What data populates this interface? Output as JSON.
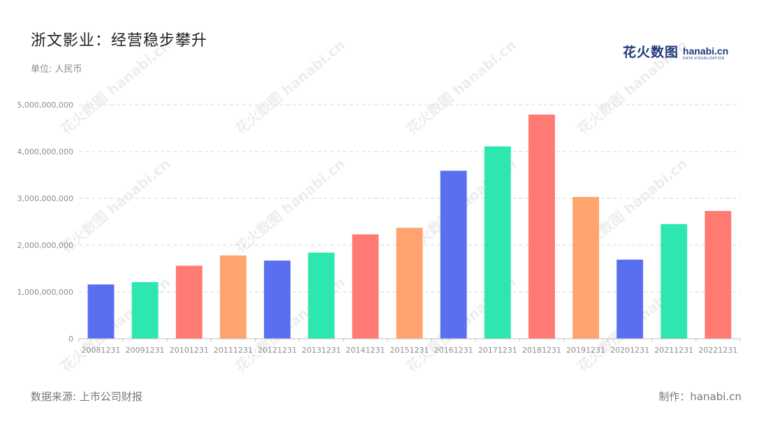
{
  "header": {
    "title": "浙文影业：经营稳步攀升",
    "unit": "单位: 人民币"
  },
  "logo": {
    "cn": "花火数图",
    "en": "hanabi.cn",
    "sub": "DATA VISUALIZATION"
  },
  "watermark_text": "花火数图 hanabi.cn",
  "footer": {
    "source": "数据来源: 上市公司财报",
    "credit": "制作：hanabi.cn"
  },
  "colors": {
    "blue": "#5a6fef",
    "green": "#2ee6b0",
    "red": "#ff7a72",
    "orange": "#ffa46e"
  },
  "chart_data": {
    "type": "bar",
    "categories": [
      "20081231",
      "20091231",
      "20101231",
      "20111231",
      "20121231",
      "20131231",
      "20141231",
      "20151231",
      "20161231",
      "20171231",
      "20181231",
      "20191231",
      "20201231",
      "20211231",
      "20221231"
    ],
    "values": [
      1160000000,
      1210000000,
      1560000000,
      1780000000,
      1670000000,
      1840000000,
      2230000000,
      2370000000,
      3590000000,
      4110000000,
      4790000000,
      3030000000,
      1690000000,
      2450000000,
      2730000000
    ],
    "bar_colors": [
      "#5a6fef",
      "#2ee6b0",
      "#ff7a72",
      "#ffa46e",
      "#5a6fef",
      "#2ee6b0",
      "#ff7a72",
      "#ffa46e",
      "#5a6fef",
      "#2ee6b0",
      "#ff7a72",
      "#ffa46e",
      "#5a6fef",
      "#2ee6b0",
      "#ff7a72"
    ],
    "yticks": [
      "0",
      "1,000,000,000",
      "2,000,000,000",
      "3,000,000,000",
      "4,000,000,000",
      "5,000,000,000"
    ],
    "ylim": [
      0,
      5000000000
    ],
    "grid": true
  }
}
